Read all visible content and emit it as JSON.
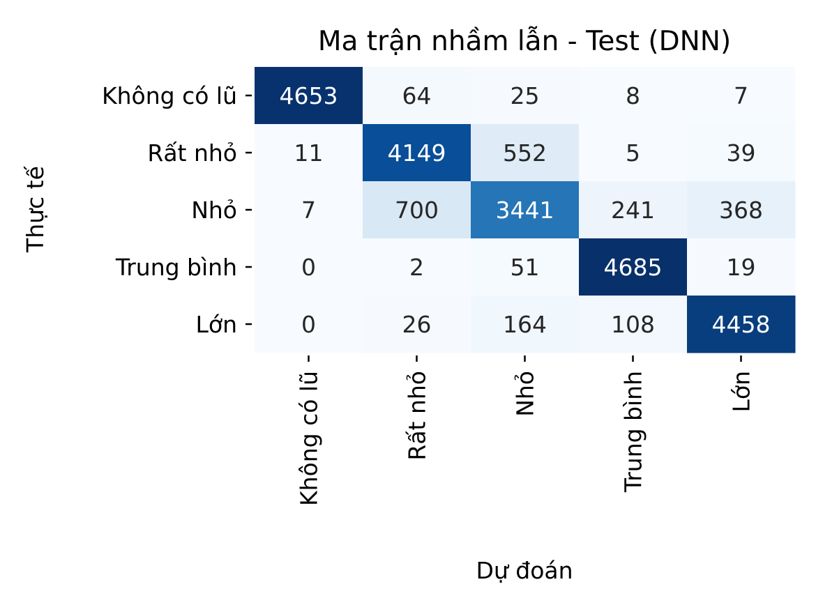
{
  "chart_data": {
    "type": "heatmap",
    "title": "Ma trận nhầm lẫn - Test (DNN)",
    "xlabel": "Dự đoán",
    "ylabel": "Thực tế",
    "x_categories": [
      "Không có lũ",
      "Rất nhỏ",
      "Nhỏ",
      "Trung bình",
      "Lớn"
    ],
    "y_categories": [
      "Không có lũ",
      "Rất nhỏ",
      "Nhỏ",
      "Trung bình",
      "Lớn"
    ],
    "values": [
      [
        4653,
        64,
        25,
        8,
        7
      ],
      [
        11,
        4149,
        552,
        5,
        39
      ],
      [
        7,
        700,
        3441,
        241,
        368
      ],
      [
        0,
        2,
        51,
        4685,
        19
      ],
      [
        0,
        26,
        164,
        108,
        4458
      ]
    ],
    "colormap": "Blues",
    "colorscale_range": [
      0,
      4685
    ],
    "colorbar": false,
    "annotations": true,
    "colors": {
      "dark_text": "#262626",
      "light_text": "#ffffff",
      "axis_text": "#000000"
    }
  }
}
